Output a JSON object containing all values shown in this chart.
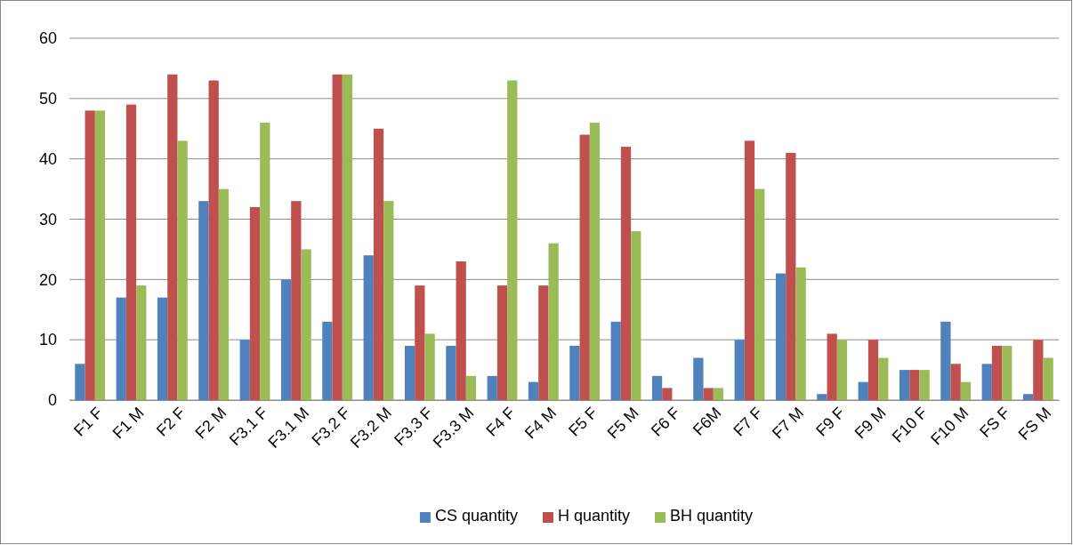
{
  "chart_data": {
    "type": "bar",
    "categories": [
      "F1 F",
      "F1 M",
      "F2 F",
      "F2 M",
      "F3.1 F",
      "F3.1 M",
      "F3.2 F",
      "F3.2 M",
      "F3.3 F",
      "F3.3 M",
      "F4 F",
      "F4 M",
      "F5 F",
      "F5 M",
      "F6 F",
      "F6M",
      "F7 F",
      "F7 M",
      "F9 F",
      "F9 M",
      "F10 F",
      "F10 M",
      "FS F",
      "FS M"
    ],
    "series": [
      {
        "name": "CS quantity",
        "color": "#4f81bd",
        "values": [
          6,
          17,
          17,
          33,
          10,
          20,
          13,
          24,
          9,
          9,
          4,
          3,
          9,
          13,
          4,
          7,
          10,
          21,
          1,
          3,
          5,
          13,
          6,
          1
        ]
      },
      {
        "name": "H quantity",
        "color": "#c0504d",
        "values": [
          48,
          49,
          54,
          53,
          32,
          33,
          54,
          45,
          19,
          23,
          19,
          19,
          44,
          42,
          2,
          2,
          43,
          41,
          11,
          10,
          5,
          6,
          9,
          10
        ]
      },
      {
        "name": "BH quantity",
        "color": "#9bbb59",
        "values": [
          48,
          19,
          43,
          35,
          46,
          25,
          54,
          33,
          11,
          4,
          53,
          26,
          46,
          28,
          0,
          2,
          35,
          22,
          10,
          7,
          5,
          3,
          9,
          7
        ]
      }
    ],
    "ylim": [
      0,
      60
    ],
    "yticks": [
      0,
      10,
      20,
      30,
      40,
      50,
      60
    ],
    "grid": "y",
    "legend": "bottom"
  }
}
